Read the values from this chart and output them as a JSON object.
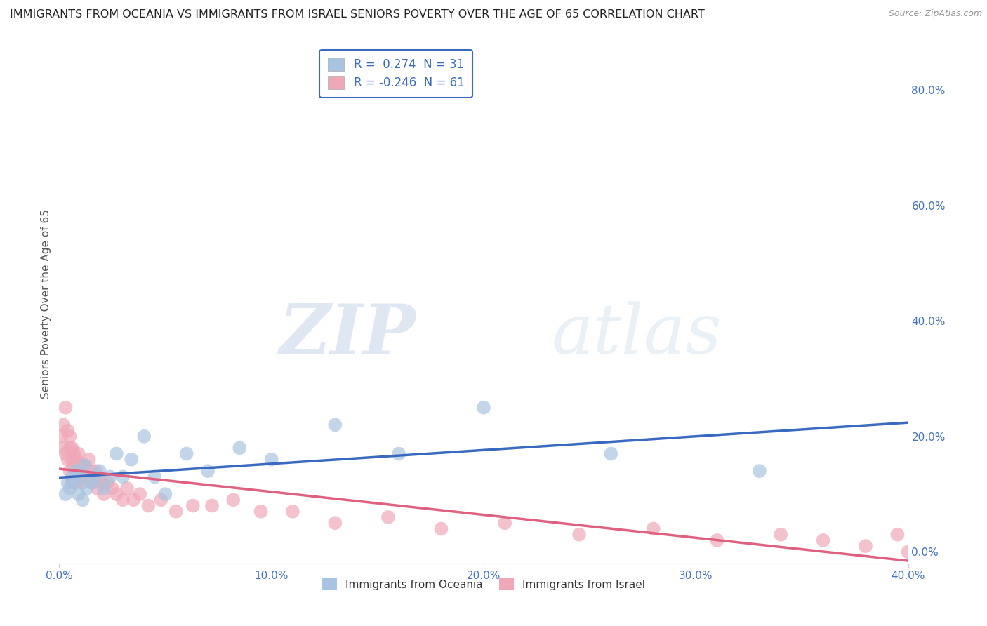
{
  "title": "IMMIGRANTS FROM OCEANIA VS IMMIGRANTS FROM ISRAEL SENIORS POVERTY OVER THE AGE OF 65 CORRELATION CHART",
  "source": "Source: ZipAtlas.com",
  "ylabel": "Seniors Poverty Over the Age of 65",
  "xlim": [
    0.0,
    0.4
  ],
  "ylim": [
    -0.02,
    0.88
  ],
  "xticks": [
    0.0,
    0.1,
    0.2,
    0.3,
    0.4
  ],
  "yticks": [
    0.0,
    0.2,
    0.4,
    0.6,
    0.8
  ],
  "xtick_labels": [
    "0.0%",
    "10.0%",
    "20.0%",
    "30.0%",
    "40.0%"
  ],
  "ytick_labels": [
    "0.0%",
    "20.0%",
    "40.0%",
    "60.0%",
    "80.0%"
  ],
  "oceania_color": "#a8c4e0",
  "israel_color": "#f0a8b8",
  "oceania_line_color": "#3a6abf",
  "israel_line_color": "#e06080",
  "oceania_R": 0.274,
  "oceania_N": 31,
  "israel_R": -0.246,
  "israel_N": 61,
  "oceania_x": [
    0.003,
    0.004,
    0.005,
    0.006,
    0.007,
    0.008,
    0.009,
    0.01,
    0.011,
    0.012,
    0.013,
    0.015,
    0.017,
    0.019,
    0.021,
    0.024,
    0.027,
    0.03,
    0.034,
    0.04,
    0.045,
    0.05,
    0.06,
    0.07,
    0.085,
    0.1,
    0.13,
    0.16,
    0.2,
    0.26,
    0.33
  ],
  "oceania_y": [
    0.1,
    0.12,
    0.11,
    0.13,
    0.12,
    0.14,
    0.1,
    0.13,
    0.09,
    0.15,
    0.11,
    0.12,
    0.13,
    0.14,
    0.11,
    0.13,
    0.17,
    0.13,
    0.16,
    0.2,
    0.13,
    0.1,
    0.17,
    0.14,
    0.18,
    0.16,
    0.22,
    0.17,
    0.25,
    0.17,
    0.14
  ],
  "israel_x": [
    0.001,
    0.002,
    0.002,
    0.003,
    0.003,
    0.004,
    0.004,
    0.005,
    0.005,
    0.005,
    0.006,
    0.006,
    0.006,
    0.007,
    0.007,
    0.008,
    0.008,
    0.008,
    0.009,
    0.009,
    0.01,
    0.01,
    0.011,
    0.011,
    0.012,
    0.013,
    0.014,
    0.015,
    0.016,
    0.017,
    0.018,
    0.019,
    0.02,
    0.021,
    0.023,
    0.025,
    0.027,
    0.03,
    0.032,
    0.035,
    0.038,
    0.042,
    0.048,
    0.055,
    0.063,
    0.072,
    0.082,
    0.095,
    0.11,
    0.13,
    0.155,
    0.18,
    0.21,
    0.245,
    0.28,
    0.31,
    0.34,
    0.36,
    0.38,
    0.395,
    0.4
  ],
  "israel_y": [
    0.2,
    0.22,
    0.18,
    0.25,
    0.17,
    0.21,
    0.16,
    0.18,
    0.14,
    0.2,
    0.16,
    0.12,
    0.18,
    0.15,
    0.17,
    0.14,
    0.16,
    0.12,
    0.14,
    0.17,
    0.13,
    0.15,
    0.14,
    0.12,
    0.15,
    0.13,
    0.16,
    0.14,
    0.12,
    0.14,
    0.11,
    0.13,
    0.12,
    0.1,
    0.12,
    0.11,
    0.1,
    0.09,
    0.11,
    0.09,
    0.1,
    0.08,
    0.09,
    0.07,
    0.08,
    0.08,
    0.09,
    0.07,
    0.07,
    0.05,
    0.06,
    0.04,
    0.05,
    0.03,
    0.04,
    0.02,
    0.03,
    0.02,
    0.01,
    0.03,
    0.0
  ],
  "watermark_zip": "ZIP",
  "watermark_atlas": "atlas",
  "legend_oceania": "Immigrants from Oceania",
  "legend_israel": "Immigrants from Israel",
  "background_color": "#ffffff",
  "grid_color": "#c0d0e0",
  "tick_color": "#4472c4",
  "title_color": "#222222",
  "title_fontsize": 11.5,
  "ylabel_color": "#555555",
  "ylabel_fontsize": 11
}
